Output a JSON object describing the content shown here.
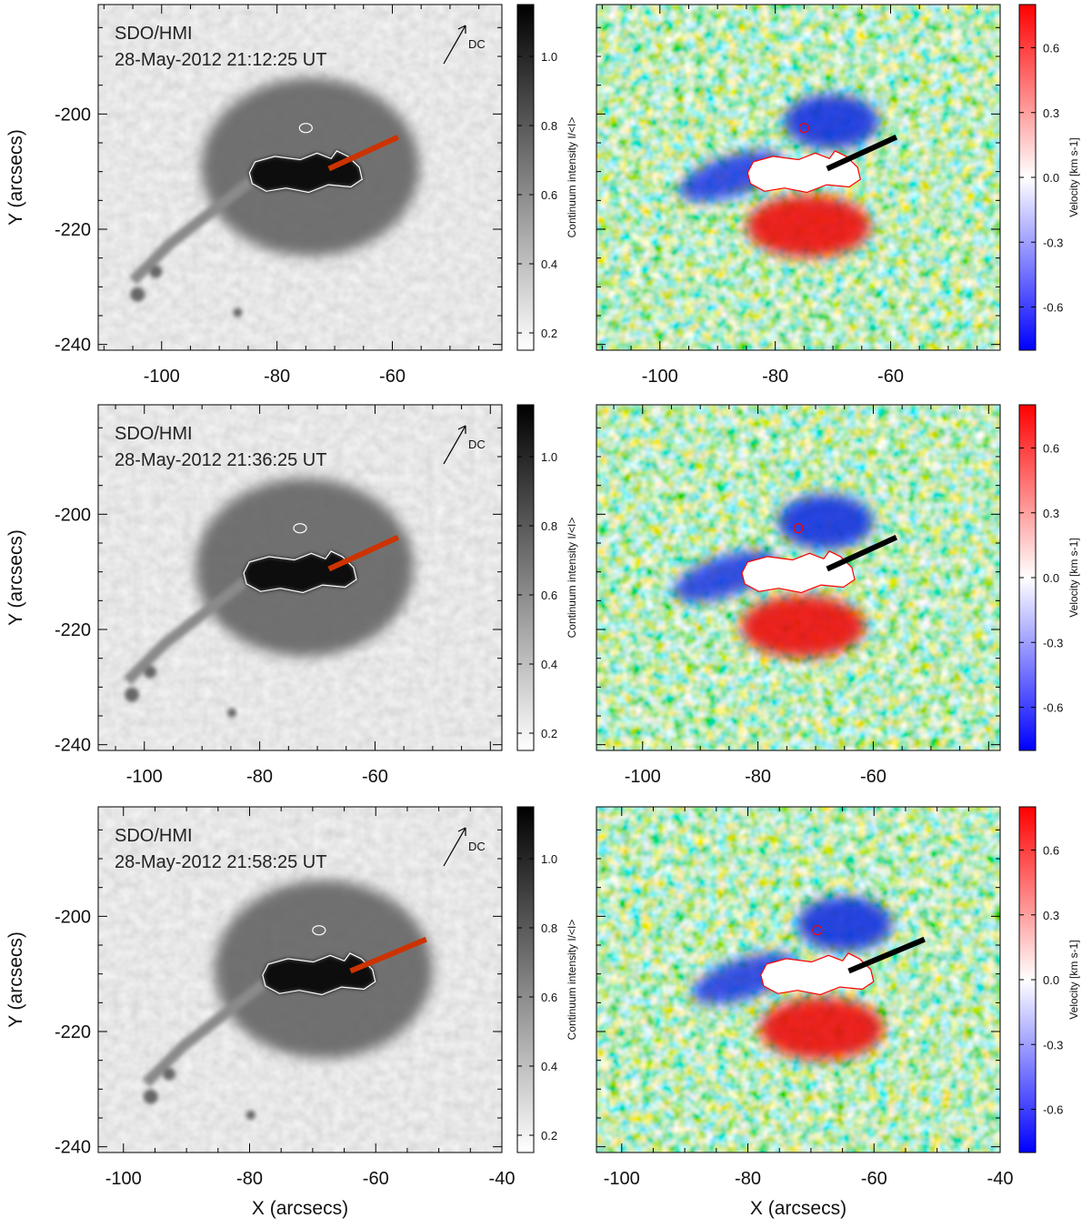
{
  "chart_data": [
    {
      "type": "heatmap",
      "panel": "intensity",
      "row": 0,
      "instrument_label": "SDO/HMI",
      "timestamp_label": "28-May-2012 21:12:25 UT",
      "direction_label": "DC",
      "xlim": [
        -111,
        -41
      ],
      "ylim": [
        -241,
        -181
      ],
      "xticks": [
        -100,
        -80,
        -60
      ],
      "xticklabels": [
        "-100",
        "-80",
        "-60"
      ],
      "yticks": [
        -200,
        -220,
        -240
      ],
      "yticklabels": [
        "-200",
        "-220",
        "-240"
      ],
      "ylabel": "Y (arcsecs)",
      "xlabel": "",
      "sunspot_center": [
        -75,
        -210
      ],
      "slit": {
        "x": [
          -71,
          -59
        ],
        "y": [
          -209.5,
          -204
        ],
        "color": "#cc3300"
      },
      "colorbar": {
        "label": "Continuum intensity I/<I>",
        "range": [
          0.15,
          1.15
        ],
        "ticks": [
          0.2,
          0.4,
          0.6,
          0.8,
          1.0
        ],
        "ticklabels": [
          "0.2",
          "0.4",
          "0.6",
          "0.8",
          "1.0"
        ],
        "colormap": "gray_reversed"
      }
    },
    {
      "type": "heatmap",
      "panel": "velocity",
      "row": 0,
      "xlim": [
        -111,
        -41
      ],
      "ylim": [
        -241,
        -181
      ],
      "xticks": [
        -100,
        -80,
        -60
      ],
      "xticklabels": [
        "-100",
        "-80",
        "-60"
      ],
      "xlabel": "",
      "sunspot_center": [
        -75,
        -210
      ],
      "slit": {
        "x": [
          -71,
          -59
        ],
        "y": [
          -209.5,
          -204
        ],
        "color": "#000000"
      },
      "colorbar": {
        "label": "Velocity [km s-1]",
        "range": [
          -0.8,
          0.8
        ],
        "ticks": [
          0.6,
          0.3,
          0.0,
          -0.3,
          -0.6
        ],
        "ticklabels": [
          "0.6",
          "0.3",
          "0.0",
          "-0.3",
          "-0.6"
        ],
        "colormap": "blue_white_red"
      }
    },
    {
      "type": "heatmap",
      "panel": "intensity",
      "row": 1,
      "instrument_label": "SDO/HMI",
      "timestamp_label": "28-May-2012 21:36:25 UT",
      "direction_label": "DC",
      "xlim": [
        -108,
        -38
      ],
      "ylim": [
        -241,
        -181
      ],
      "xticks": [
        -100,
        -80,
        -60
      ],
      "xticklabels": [
        "-100",
        "-80",
        "-60"
      ],
      "yticks": [
        -200,
        -220,
        -240
      ],
      "yticklabels": [
        "-200",
        "-220",
        "-240"
      ],
      "ylabel": "Y (arcsecs)",
      "xlabel": "",
      "sunspot_center": [
        -73,
        -210
      ],
      "slit": {
        "x": [
          -68,
          -56
        ],
        "y": [
          -209.5,
          -204
        ],
        "color": "#cc3300"
      },
      "colorbar": {
        "label": "Continuum intensity I/<I>",
        "range": [
          0.15,
          1.15
        ],
        "ticks": [
          0.2,
          0.4,
          0.6,
          0.8,
          1.0
        ],
        "ticklabels": [
          "0.2",
          "0.4",
          "0.6",
          "0.8",
          "1.0"
        ],
        "colormap": "gray_reversed"
      }
    },
    {
      "type": "heatmap",
      "panel": "velocity",
      "row": 1,
      "xlim": [
        -108,
        -38
      ],
      "ylim": [
        -241,
        -181
      ],
      "xticks": [
        -100,
        -80,
        -60
      ],
      "xticklabels": [
        "-100",
        "-80",
        "-60"
      ],
      "xlabel": "",
      "sunspot_center": [
        -73,
        -210
      ],
      "slit": {
        "x": [
          -68,
          -56
        ],
        "y": [
          -209.5,
          -204
        ],
        "color": "#000000"
      },
      "colorbar": {
        "label": "Velocity [km s-1]",
        "range": [
          -0.8,
          0.8
        ],
        "ticks": [
          0.6,
          0.3,
          0.0,
          -0.3,
          -0.6
        ],
        "ticklabels": [
          "0.6",
          "0.3",
          "0.0",
          "-0.3",
          "-0.6"
        ],
        "colormap": "blue_white_red"
      }
    },
    {
      "type": "heatmap",
      "panel": "intensity",
      "row": 2,
      "instrument_label": "SDO/HMI",
      "timestamp_label": "28-May-2012 21:58:25 UT",
      "direction_label": "DC",
      "xlim": [
        -104,
        -40
      ],
      "ylim": [
        -241,
        -181
      ],
      "xticks": [
        -100,
        -80,
        -60,
        -40
      ],
      "xticklabels": [
        "-100",
        "-80",
        "-60",
        "-40"
      ],
      "yticks": [
        -200,
        -220,
        -240
      ],
      "yticklabels": [
        "-200",
        "-220",
        "-240"
      ],
      "ylabel": "Y (arcsecs)",
      "xlabel": "X (arcsecs)",
      "sunspot_center": [
        -69,
        -210
      ],
      "slit": {
        "x": [
          -64,
          -52
        ],
        "y": [
          -209.5,
          -204
        ],
        "color": "#cc3300"
      },
      "colorbar": {
        "label": "Continuum intensity I/<I>",
        "range": [
          0.15,
          1.15
        ],
        "ticks": [
          0.2,
          0.4,
          0.6,
          0.8,
          1.0
        ],
        "ticklabels": [
          "0.2",
          "0.4",
          "0.6",
          "0.8",
          "1.0"
        ],
        "colormap": "gray_reversed"
      }
    },
    {
      "type": "heatmap",
      "panel": "velocity",
      "row": 2,
      "xlim": [
        -104,
        -40
      ],
      "ylim": [
        -241,
        -181
      ],
      "xticks": [
        -100,
        -80,
        -60,
        -40
      ],
      "xticklabels": [
        "-100",
        "-80",
        "-60",
        "-40"
      ],
      "xlabel": "X (arcsecs)",
      "sunspot_center": [
        -69,
        -210
      ],
      "slit": {
        "x": [
          -64,
          -52
        ],
        "y": [
          -209.5,
          -204
        ],
        "color": "#000000"
      },
      "colorbar": {
        "label": "Velocity [km s-1]",
        "range": [
          -0.8,
          0.8
        ],
        "ticks": [
          0.6,
          0.3,
          0.0,
          -0.3,
          -0.6
        ],
        "ticklabels": [
          "0.6",
          "0.3",
          "0.0",
          "-0.3",
          "-0.6"
        ],
        "colormap": "blue_white_red"
      }
    }
  ]
}
